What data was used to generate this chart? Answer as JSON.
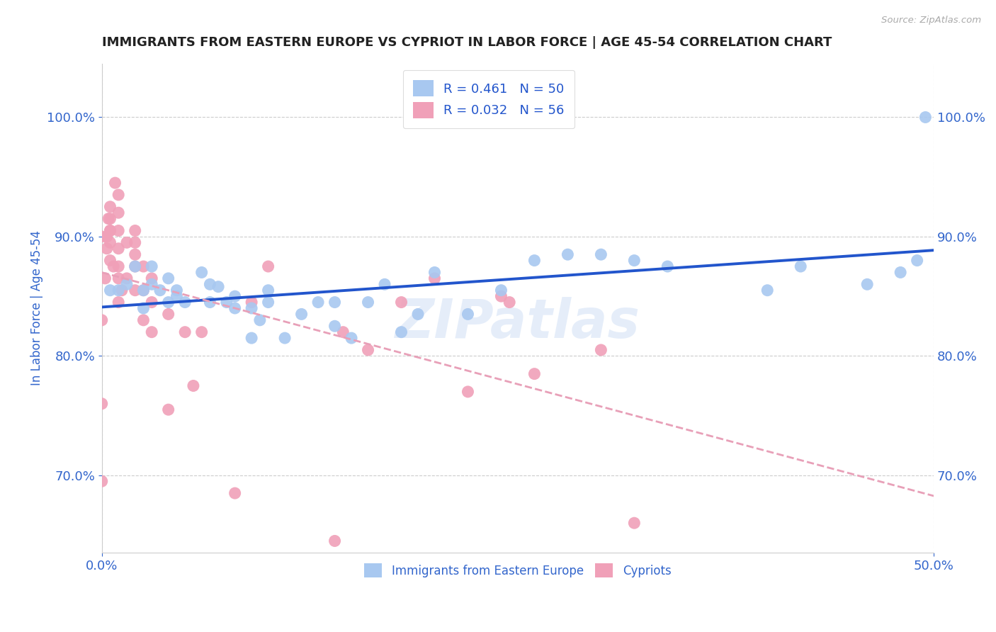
{
  "title": "IMMIGRANTS FROM EASTERN EUROPE VS CYPRIOT IN LABOR FORCE | AGE 45-54 CORRELATION CHART",
  "source_text": "Source: ZipAtlas.com",
  "ylabel": "In Labor Force | Age 45-54",
  "xlim": [
    0.0,
    0.5
  ],
  "ylim": [
    0.635,
    1.045
  ],
  "ytick_values": [
    0.7,
    0.8,
    0.9,
    1.0
  ],
  "xtick_values": [
    0.0,
    0.5
  ],
  "legend_R_blue": "0.461",
  "legend_N_blue": "50",
  "legend_R_pink": "0.032",
  "legend_N_pink": "56",
  "blue_color": "#a8c8f0",
  "pink_color": "#f0a0b8",
  "blue_line_color": "#2255cc",
  "pink_line_color": "#e8a0b8",
  "title_color": "#222222",
  "axis_label_color": "#3366cc",
  "legend_label_blue": "Immigrants from Eastern Europe",
  "legend_label_pink": "Cypriots",
  "watermark_text": "ZIPatlas",
  "blue_x": [
    0.005,
    0.01,
    0.015,
    0.02,
    0.025,
    0.025,
    0.03,
    0.03,
    0.035,
    0.04,
    0.04,
    0.045,
    0.045,
    0.05,
    0.06,
    0.065,
    0.065,
    0.07,
    0.075,
    0.08,
    0.08,
    0.09,
    0.09,
    0.095,
    0.1,
    0.1,
    0.11,
    0.12,
    0.13,
    0.14,
    0.14,
    0.15,
    0.16,
    0.17,
    0.18,
    0.19,
    0.2,
    0.22,
    0.24,
    0.26,
    0.28,
    0.3,
    0.32,
    0.34,
    0.4,
    0.42,
    0.46,
    0.48,
    0.49,
    0.495
  ],
  "blue_y": [
    0.855,
    0.855,
    0.86,
    0.875,
    0.84,
    0.855,
    0.86,
    0.875,
    0.855,
    0.845,
    0.865,
    0.855,
    0.85,
    0.845,
    0.87,
    0.845,
    0.86,
    0.858,
    0.845,
    0.84,
    0.85,
    0.815,
    0.84,
    0.83,
    0.845,
    0.855,
    0.815,
    0.835,
    0.845,
    0.825,
    0.845,
    0.815,
    0.845,
    0.86,
    0.82,
    0.835,
    0.87,
    0.835,
    0.855,
    0.88,
    0.885,
    0.885,
    0.88,
    0.875,
    0.855,
    0.875,
    0.86,
    0.87,
    0.88,
    1.0
  ],
  "pink_x": [
    0.0,
    0.0,
    0.0,
    0.0,
    0.002,
    0.003,
    0.003,
    0.004,
    0.005,
    0.005,
    0.005,
    0.005,
    0.005,
    0.005,
    0.007,
    0.008,
    0.01,
    0.01,
    0.01,
    0.01,
    0.01,
    0.01,
    0.01,
    0.012,
    0.015,
    0.015,
    0.02,
    0.02,
    0.02,
    0.02,
    0.02,
    0.025,
    0.025,
    0.025,
    0.03,
    0.03,
    0.03,
    0.04,
    0.04,
    0.05,
    0.055,
    0.06,
    0.08,
    0.09,
    0.1,
    0.14,
    0.145,
    0.16,
    0.18,
    0.2,
    0.22,
    0.24,
    0.245,
    0.26,
    0.3,
    0.32
  ],
  "pink_y": [
    0.695,
    0.76,
    0.83,
    0.9,
    0.865,
    0.89,
    0.9,
    0.915,
    0.88,
    0.895,
    0.905,
    0.905,
    0.915,
    0.925,
    0.875,
    0.945,
    0.845,
    0.865,
    0.875,
    0.89,
    0.905,
    0.92,
    0.935,
    0.855,
    0.865,
    0.895,
    0.855,
    0.875,
    0.885,
    0.895,
    0.905,
    0.83,
    0.855,
    0.875,
    0.82,
    0.845,
    0.865,
    0.755,
    0.835,
    0.82,
    0.775,
    0.82,
    0.685,
    0.845,
    0.875,
    0.645,
    0.82,
    0.805,
    0.845,
    0.865,
    0.77,
    0.85,
    0.845,
    0.785,
    0.805,
    0.66
  ],
  "grid_color": "#cccccc",
  "background_color": "#ffffff"
}
